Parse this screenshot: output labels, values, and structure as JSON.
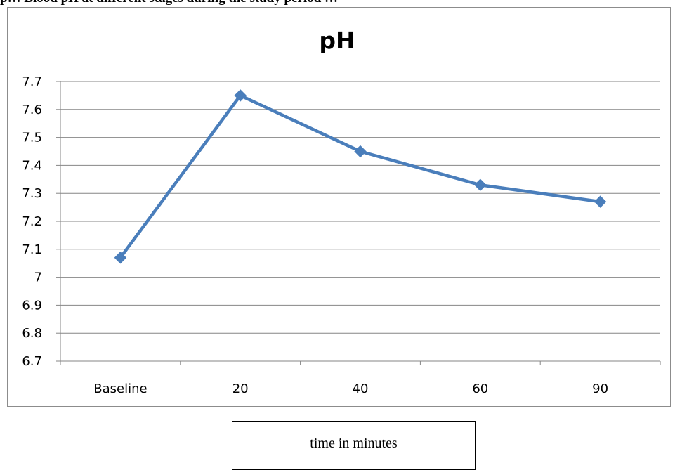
{
  "document": {
    "heading": "p… Blood pH at different stages during the study period …"
  },
  "chart_data": {
    "type": "line",
    "title": "pH",
    "xlabel": "time in minutes",
    "ylabel": "",
    "categories": [
      "Baseline",
      "20",
      "40",
      "60",
      "90"
    ],
    "series": [
      {
        "values": [
          7.07,
          7.65,
          7.45,
          7.33,
          7.27
        ],
        "color": "#4a7ebb",
        "marker": "diamond"
      }
    ],
    "ylim": [
      6.7,
      7.7
    ],
    "yticks": [
      "6.7",
      "6.8",
      "6.9",
      "7",
      "7.1",
      "7.2",
      "7.3",
      "7.4",
      "7.5",
      "7.6",
      "7.7"
    ],
    "grid": true,
    "legend": "none"
  }
}
